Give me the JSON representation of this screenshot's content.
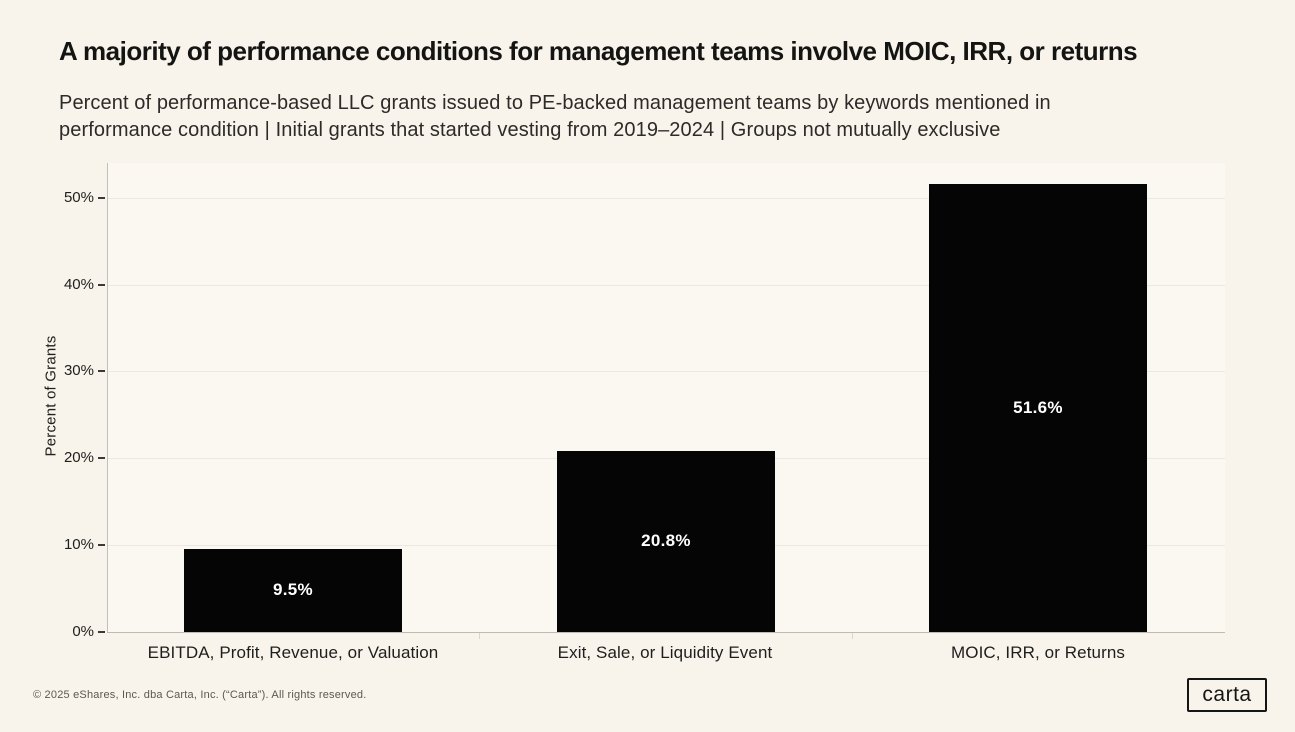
{
  "chart_data": {
    "type": "bar",
    "title": "A majority of performance conditions for management teams involve MOIC, IRR, or returns",
    "subtitle_lines": [
      "Percent of performance-based LLC grants issued to PE-backed management teams by keywords mentioned in",
      "performance condition | Initial grants that started vesting from 2019–2024 | Groups not mutually exclusive"
    ],
    "categories": [
      "EBITDA, Profit, Revenue, or Valuation",
      "Exit, Sale, or Liquidity Event",
      "MOIC, IRR, or Returns"
    ],
    "values": [
      9.5,
      20.8,
      51.6
    ],
    "value_labels": [
      "9.5%",
      "20.8%",
      "51.6%"
    ],
    "xlabel": "",
    "ylabel": "Percent of Grants",
    "ylim": [
      0,
      54
    ],
    "yticks": [
      0,
      10,
      20,
      30,
      40,
      50
    ],
    "ytick_labels": [
      "0%",
      "10%",
      "20%",
      "30%",
      "40%",
      "50%"
    ],
    "grid": "horizontal",
    "legend": "none",
    "bar_color": "#050505",
    "bar_label_color": "#ffffff"
  },
  "footer": {
    "copyright": "© 2025 eShares, Inc. dba Carta, Inc. (“Carta”). All rights reserved.",
    "logo_text": "carta"
  },
  "colors": {
    "page_bg": "#f8f4ec",
    "plot_bg": "#fbf8f1",
    "gridline": "#eae8e0",
    "axis_line": "#c2c0ba",
    "tick": "#3a3a38",
    "title_text": "#141413",
    "subtitle_text": "#2d2b28",
    "footer_text": "#5b5852"
  }
}
